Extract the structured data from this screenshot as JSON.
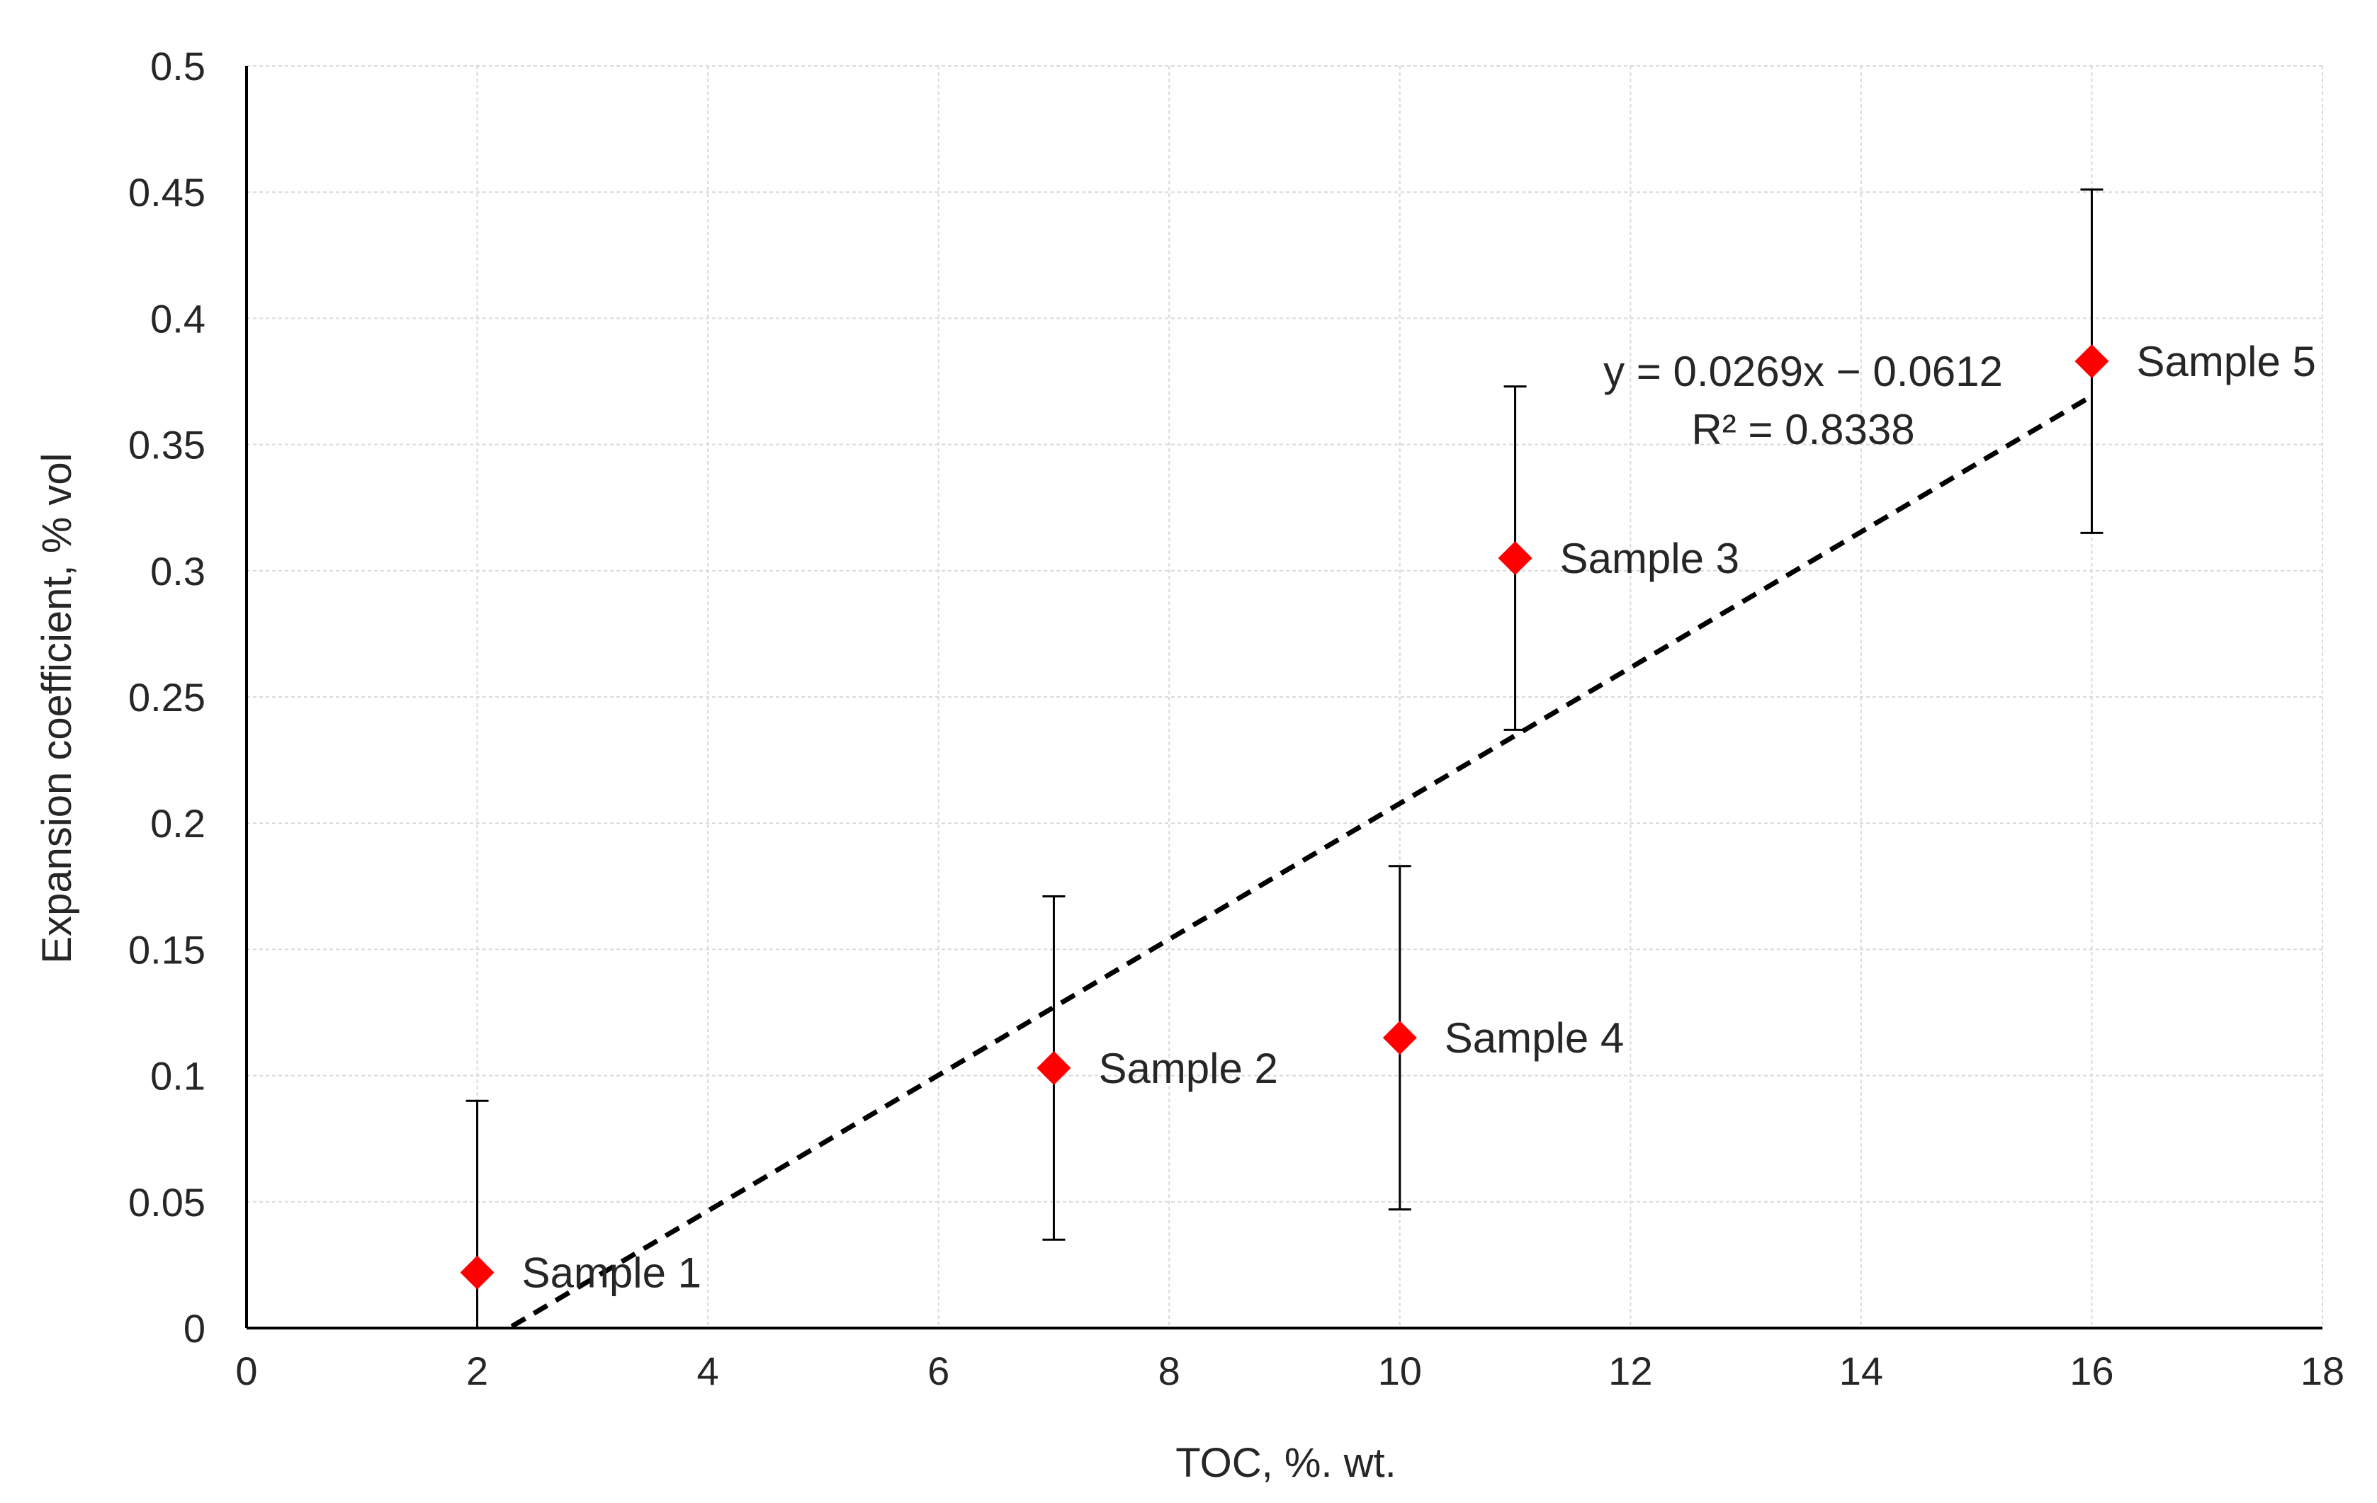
{
  "chart_data": {
    "type": "scatter",
    "title": "",
    "xlabel": "TOC, %. wt.",
    "ylabel": "Expansion coefficient, % vol",
    "xlim": [
      0,
      18
    ],
    "ylim": [
      0,
      0.5
    ],
    "xticks": [
      0,
      2,
      4,
      6,
      8,
      10,
      12,
      14,
      16,
      18
    ],
    "yticks": [
      0,
      0.05,
      0.1,
      0.15,
      0.2,
      0.25,
      0.3,
      0.35,
      0.4,
      0.45,
      0.5
    ],
    "x_tick_labels": [
      "0",
      "2",
      "4",
      "6",
      "8",
      "10",
      "12",
      "14",
      "16",
      "18"
    ],
    "y_tick_labels": [
      "0",
      "0.05",
      "0.1",
      "0.15",
      "0.2",
      "0.25",
      "0.3",
      "0.35",
      "0.4",
      "0.45",
      "0.5"
    ],
    "grid": true,
    "marker": "diamond",
    "marker_color": "#FF0000",
    "series": [
      {
        "name": "Samples",
        "points": [
          {
            "label": "Sample 1",
            "x": 2.0,
            "y": 0.022,
            "err_low": 0.0,
            "err_high": 0.09
          },
          {
            "label": "Sample 2",
            "x": 7.0,
            "y": 0.103,
            "err_low": 0.035,
            "err_high": 0.171
          },
          {
            "label": "Sample 3",
            "x": 11.0,
            "y": 0.305,
            "err_low": 0.237,
            "err_high": 0.373
          },
          {
            "label": "Sample 4",
            "x": 10.0,
            "y": 0.115,
            "err_low": 0.047,
            "err_high": 0.183
          },
          {
            "label": "Sample 5",
            "x": 16.0,
            "y": 0.383,
            "err_low": 0.315,
            "err_high": 0.451
          }
        ]
      }
    ],
    "trendline": {
      "type": "linear",
      "slope": 0.0269,
      "intercept": -0.0612,
      "x_range": [
        2.3,
        16.0
      ],
      "style": "dashed",
      "color": "#000000",
      "equation": "y = 0.0269x − 0.0612",
      "r_squared": "R² = 0.8338"
    }
  }
}
